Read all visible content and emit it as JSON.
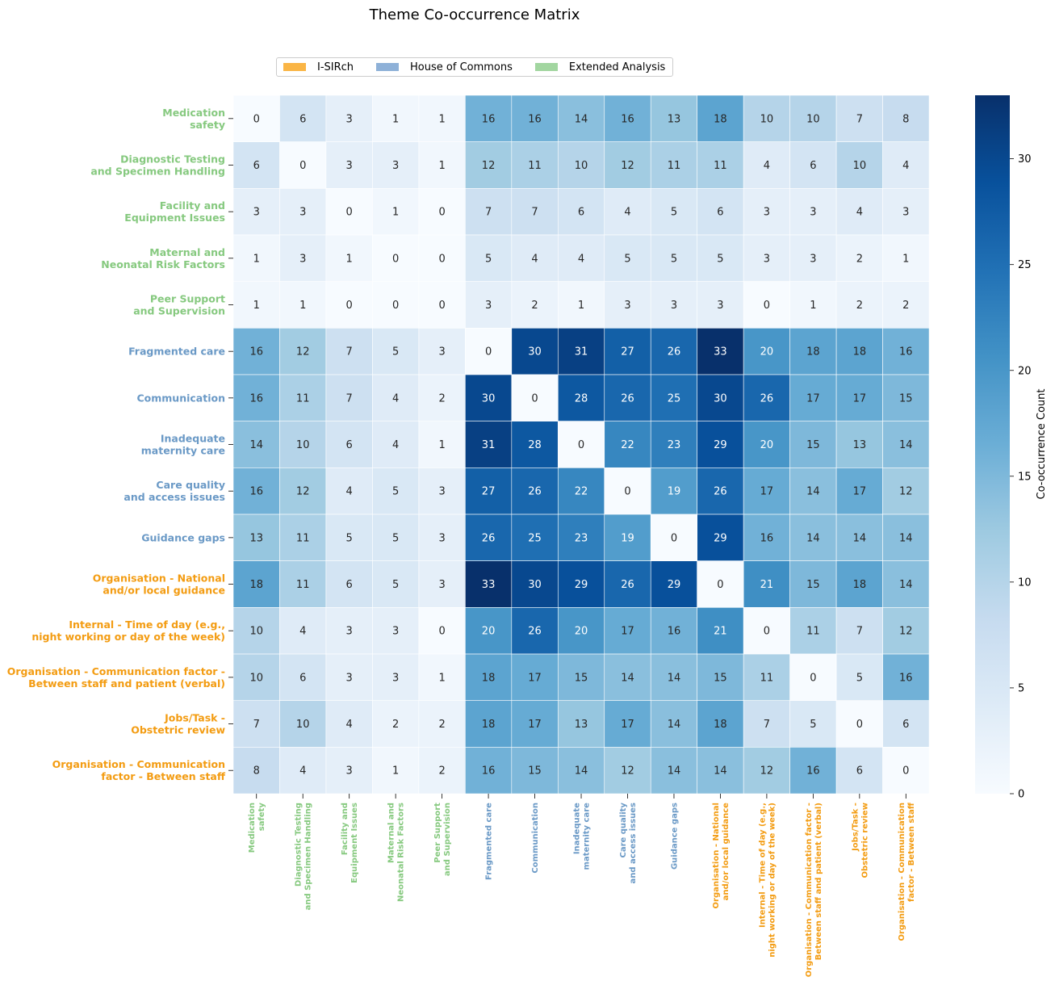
{
  "chart_data": {
    "type": "heatmap",
    "title": "Theme Co-occurrence Matrix",
    "colorbar_label": "Co-occurrence Count",
    "colorbar_ticks": [
      0,
      5,
      10,
      15,
      20,
      25,
      30
    ],
    "color_range": [
      0,
      33
    ],
    "colormap": "Blues",
    "legend_placement": "top-center",
    "legend": [
      {
        "label": "I-SIRch",
        "color": "#f9a825",
        "group": "isirch"
      },
      {
        "label": "House of Commons",
        "color": "#8eb1d8",
        "group": "hoc"
      },
      {
        "label": "Extended Analysis",
        "color": "#a2d6a0",
        "group": "ext"
      }
    ],
    "group_text_colors": {
      "ext": "#86c97f",
      "hoc": "#6a99c6",
      "isirch": "#f39c12"
    },
    "labels": [
      {
        "text": "Medication\nsafety",
        "group": "ext"
      },
      {
        "text": "Diagnostic Testing\nand Specimen Handling",
        "group": "ext"
      },
      {
        "text": "Facility and\nEquipment Issues",
        "group": "ext"
      },
      {
        "text": "Maternal and\nNeonatal Risk Factors",
        "group": "ext"
      },
      {
        "text": "Peer Support\nand Supervision",
        "group": "ext"
      },
      {
        "text": "Fragmented care",
        "group": "hoc"
      },
      {
        "text": "Communication",
        "group": "hoc"
      },
      {
        "text": "Inadequate\nmaternity care",
        "group": "hoc"
      },
      {
        "text": "Care quality\nand access issues",
        "group": "hoc"
      },
      {
        "text": "Guidance gaps",
        "group": "hoc"
      },
      {
        "text": "Organisation - National\nand/or local guidance",
        "group": "isirch"
      },
      {
        "text": "Internal - Time of day (e.g.,\nnight working or day of the week)",
        "group": "isirch"
      },
      {
        "text": "Organisation - Communication factor -\nBetween staff and patient (verbal)",
        "group": "isirch"
      },
      {
        "text": "Jobs/Task -\nObstetric review",
        "group": "isirch"
      },
      {
        "text": "Organisation - Communication\nfactor - Between staff",
        "group": "isirch"
      }
    ],
    "matrix": [
      [
        0,
        6,
        3,
        1,
        1,
        16,
        16,
        14,
        16,
        13,
        18,
        10,
        10,
        7,
        8
      ],
      [
        6,
        0,
        3,
        3,
        1,
        12,
        11,
        10,
        12,
        11,
        11,
        4,
        6,
        10,
        4
      ],
      [
        3,
        3,
        0,
        1,
        0,
        7,
        7,
        6,
        4,
        5,
        6,
        3,
        3,
        4,
        3
      ],
      [
        1,
        3,
        1,
        0,
        0,
        5,
        4,
        4,
        5,
        5,
        5,
        3,
        3,
        2,
        1
      ],
      [
        1,
        1,
        0,
        0,
        0,
        3,
        2,
        1,
        3,
        3,
        3,
        0,
        1,
        2,
        2
      ],
      [
        16,
        12,
        7,
        5,
        3,
        0,
        30,
        31,
        27,
        26,
        33,
        20,
        18,
        18,
        16
      ],
      [
        16,
        11,
        7,
        4,
        2,
        30,
        0,
        28,
        26,
        25,
        30,
        26,
        17,
        17,
        15
      ],
      [
        14,
        10,
        6,
        4,
        1,
        31,
        28,
        0,
        22,
        23,
        29,
        20,
        15,
        13,
        14
      ],
      [
        16,
        12,
        4,
        5,
        3,
        27,
        26,
        22,
        0,
        19,
        26,
        17,
        14,
        17,
        12
      ],
      [
        13,
        11,
        5,
        5,
        3,
        26,
        25,
        23,
        19,
        0,
        29,
        16,
        14,
        14,
        14
      ],
      [
        18,
        11,
        6,
        5,
        3,
        33,
        30,
        29,
        26,
        29,
        0,
        21,
        15,
        18,
        14
      ],
      [
        10,
        4,
        3,
        3,
        0,
        20,
        26,
        20,
        17,
        16,
        21,
        0,
        11,
        7,
        12
      ],
      [
        10,
        6,
        3,
        3,
        1,
        18,
        17,
        15,
        14,
        14,
        15,
        11,
        0,
        5,
        16
      ],
      [
        7,
        10,
        4,
        2,
        2,
        18,
        17,
        13,
        17,
        14,
        18,
        7,
        5,
        0,
        6
      ],
      [
        8,
        4,
        3,
        1,
        2,
        16,
        15,
        14,
        12,
        14,
        14,
        12,
        16,
        6,
        0
      ]
    ]
  }
}
